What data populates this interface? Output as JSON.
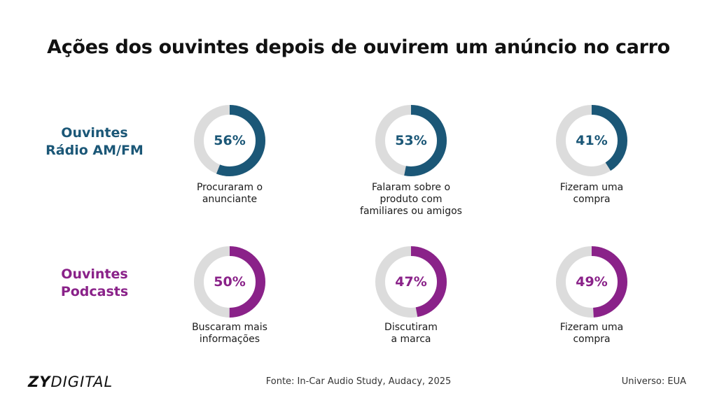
{
  "title": "Ações dos ouvintes depois de ouvirem um anúncio no carro",
  "colors": {
    "radio": "#1b5777",
    "podcast": "#8a2289",
    "track": "#dcdcdc"
  },
  "footer": {
    "logo_bold": "ZY",
    "logo_light": "DIGITAL",
    "source": "Fonte: In-Car Audio Study, Audacy, 2025",
    "universe": "Universo: EUA"
  },
  "chart_data": [
    {
      "type": "pie",
      "group": [
        "Ouvintes",
        "Rádio AM/FM"
      ],
      "series": [
        {
          "label": "56%",
          "value": 56,
          "caption": [
            "Procuraram o",
            "anunciante"
          ]
        },
        {
          "label": "53%",
          "value": 53,
          "caption": [
            "Falaram sobre o",
            "produto com",
            "familiares ou amigos"
          ]
        },
        {
          "label": "41%",
          "value": 41,
          "caption": [
            "Fizeram uma",
            "compra"
          ]
        }
      ]
    },
    {
      "type": "pie",
      "group": [
        "Ouvintes",
        "Podcasts"
      ],
      "series": [
        {
          "label": "50%",
          "value": 50,
          "caption": [
            "Buscaram mais",
            "informações"
          ]
        },
        {
          "label": "47%",
          "value": 47,
          "caption": [
            "Discutiram",
            "a marca"
          ]
        },
        {
          "label": "49%",
          "value": 49,
          "caption": [
            "Fizeram uma",
            "compra"
          ]
        }
      ]
    }
  ]
}
